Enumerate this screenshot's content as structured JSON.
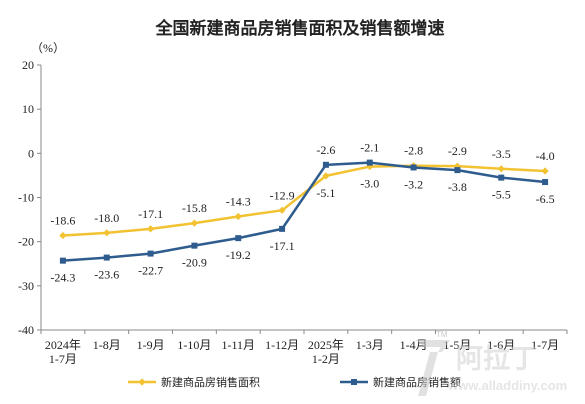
{
  "chart_data": {
    "type": "line",
    "title": "全国新建商品房销售面积及销售额增速",
    "unit_label": "（%）",
    "ylim": [
      -40,
      20
    ],
    "yticks": [
      20,
      10,
      0,
      -10,
      -20,
      -30,
      -40
    ],
    "categories": [
      [
        "2024年",
        "1-7月"
      ],
      [
        "1-8月"
      ],
      [
        "1-9月"
      ],
      [
        "1-10月"
      ],
      [
        "1-11月"
      ],
      [
        "1-12月"
      ],
      [
        "2025年",
        "1-2月"
      ],
      [
        "1-3月"
      ],
      [
        "1-4月"
      ],
      [
        "1-5月"
      ],
      [
        "1-6月"
      ],
      [
        "1-7月"
      ]
    ],
    "series": [
      {
        "name": "新建商品房销售面积",
        "color": "#f2c230",
        "values": [
          -18.6,
          -18.0,
          -17.1,
          -15.8,
          -14.3,
          -12.9,
          -5.1,
          -3.0,
          -2.8,
          -2.9,
          -3.5,
          -4.0
        ],
        "label_pos": [
          "above",
          "above",
          "above",
          "above",
          "above",
          "above",
          "below",
          "below",
          "above",
          "above",
          "above",
          "above"
        ]
      },
      {
        "name": "新建商品房销售额",
        "color": "#2e5c8e",
        "values": [
          -24.3,
          -23.6,
          -22.7,
          -20.9,
          -19.2,
          -17.1,
          -2.6,
          -2.1,
          -3.2,
          -3.8,
          -5.5,
          -6.5
        ],
        "label_pos": [
          "below",
          "below",
          "below",
          "below",
          "below",
          "below",
          "above",
          "above",
          "below",
          "below",
          "below",
          "below"
        ]
      }
    ],
    "grid": false,
    "legend": "bottom"
  },
  "watermark": {
    "cn": "阿拉丁",
    "url": "www.alladdiny.com",
    "tm": "TM"
  }
}
